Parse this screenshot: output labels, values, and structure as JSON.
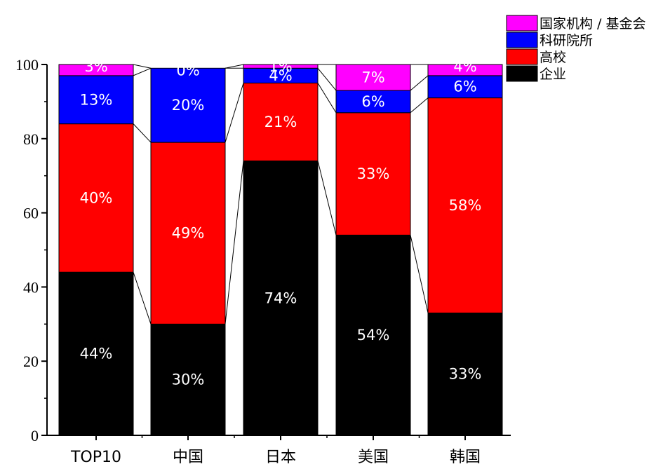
{
  "chart_data": {
    "type": "bar",
    "stacked": true,
    "title": "",
    "xlabel": "",
    "ylabel": "",
    "ylim": [
      0,
      100
    ],
    "yticks": [
      "0",
      "20",
      "40",
      "60",
      "80",
      "100"
    ],
    "categories": [
      "TOP10",
      "中国",
      "日本",
      "美国",
      "韩国"
    ],
    "series": [
      {
        "name": "企业",
        "color": "#000000",
        "values": [
          44,
          30,
          74,
          54,
          33
        ],
        "labels": [
          "44%",
          "30%",
          "74%",
          "54%",
          "33%"
        ]
      },
      {
        "name": "高校",
        "color": "#ff0000",
        "values": [
          40,
          49,
          21,
          33,
          58
        ],
        "labels": [
          "40%",
          "49%",
          "21%",
          "33%",
          "58%"
        ]
      },
      {
        "name": "科研院所",
        "color": "#0000ff",
        "values": [
          13,
          20,
          4,
          6,
          6
        ],
        "labels": [
          "13%",
          "20%",
          "4%",
          "6%",
          "6%"
        ]
      },
      {
        "name": "国家机构 / 基金会",
        "color": "#ff00ff",
        "values": [
          3,
          0,
          1,
          7,
          4
        ],
        "labels": [
          "3%",
          "0%",
          "1%",
          "7%",
          "4%"
        ]
      }
    ],
    "legend": {
      "position": "top-right",
      "order": [
        "国家机构 / 基金会",
        "科研院所",
        "高校",
        "企业"
      ]
    },
    "grid": false
  }
}
